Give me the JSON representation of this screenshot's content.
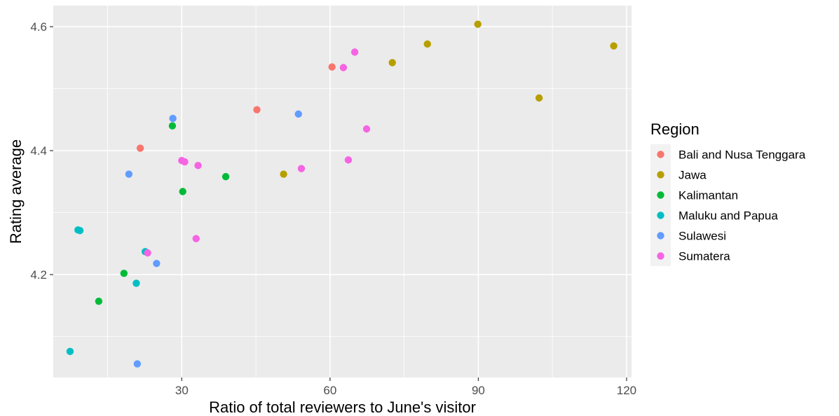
{
  "chart_data": {
    "type": "scatter",
    "title": "",
    "xlabel": "Ratio of total reviewers to June's visitor",
    "ylabel": "Rating average",
    "xlim": [
      4,
      121
    ],
    "ylim": [
      4.034,
      4.634
    ],
    "x_major_ticks": [
      30,
      60,
      90,
      120
    ],
    "x_minor_ticks": [
      15,
      45,
      75,
      105
    ],
    "y_major_ticks": [
      4.2,
      4.4,
      4.6
    ],
    "y_minor_ticks": [
      4.1,
      4.3,
      4.5
    ],
    "x_tick_labels": [
      "30",
      "60",
      "90",
      "120"
    ],
    "y_tick_labels": [
      "4.2",
      "4.4",
      "4.6"
    ],
    "grid": true,
    "panel_background": "#ebebeb",
    "grid_color": "#ffffff",
    "legend": {
      "title": "Region",
      "position": "right"
    },
    "series": [
      {
        "name": "Bali and Nusa Tenggara",
        "color": "#F8766D",
        "points": [
          [
            21.6,
            4.404
          ],
          [
            45.2,
            4.466
          ],
          [
            60.4,
            4.535
          ]
        ]
      },
      {
        "name": "Jawa",
        "color": "#B79F00",
        "points": [
          [
            50.6,
            4.362
          ],
          [
            72.6,
            4.542
          ],
          [
            79.7,
            4.572
          ],
          [
            89.9,
            4.604
          ],
          [
            102.3,
            4.485
          ],
          [
            117.4,
            4.569
          ]
        ]
      },
      {
        "name": "Kalimantan",
        "color": "#00BA38",
        "points": [
          [
            13.2,
            4.157
          ],
          [
            18.3,
            4.202
          ],
          [
            28.1,
            4.44
          ],
          [
            30.2,
            4.334
          ],
          [
            38.9,
            4.358
          ]
        ]
      },
      {
        "name": "Maluku and Papua",
        "color": "#00BFC4",
        "points": [
          [
            7.4,
            4.076
          ],
          [
            9.0,
            4.272
          ],
          [
            9.4,
            4.271
          ],
          [
            20.8,
            4.186
          ],
          [
            22.6,
            4.237
          ]
        ]
      },
      {
        "name": "Sulawesi",
        "color": "#619CFF",
        "points": [
          [
            19.3,
            4.362
          ],
          [
            21.0,
            4.056
          ],
          [
            24.9,
            4.218
          ],
          [
            28.2,
            4.452
          ],
          [
            53.6,
            4.459
          ]
        ]
      },
      {
        "name": "Sumatera",
        "color": "#F564E3",
        "points": [
          [
            23.1,
            4.235
          ],
          [
            30.0,
            4.384
          ],
          [
            30.6,
            4.382
          ],
          [
            32.9,
            4.258
          ],
          [
            33.3,
            4.376
          ],
          [
            54.2,
            4.371
          ],
          [
            62.7,
            4.534
          ],
          [
            63.7,
            4.385
          ],
          [
            65.0,
            4.559
          ],
          [
            67.4,
            4.435
          ]
        ]
      }
    ]
  }
}
